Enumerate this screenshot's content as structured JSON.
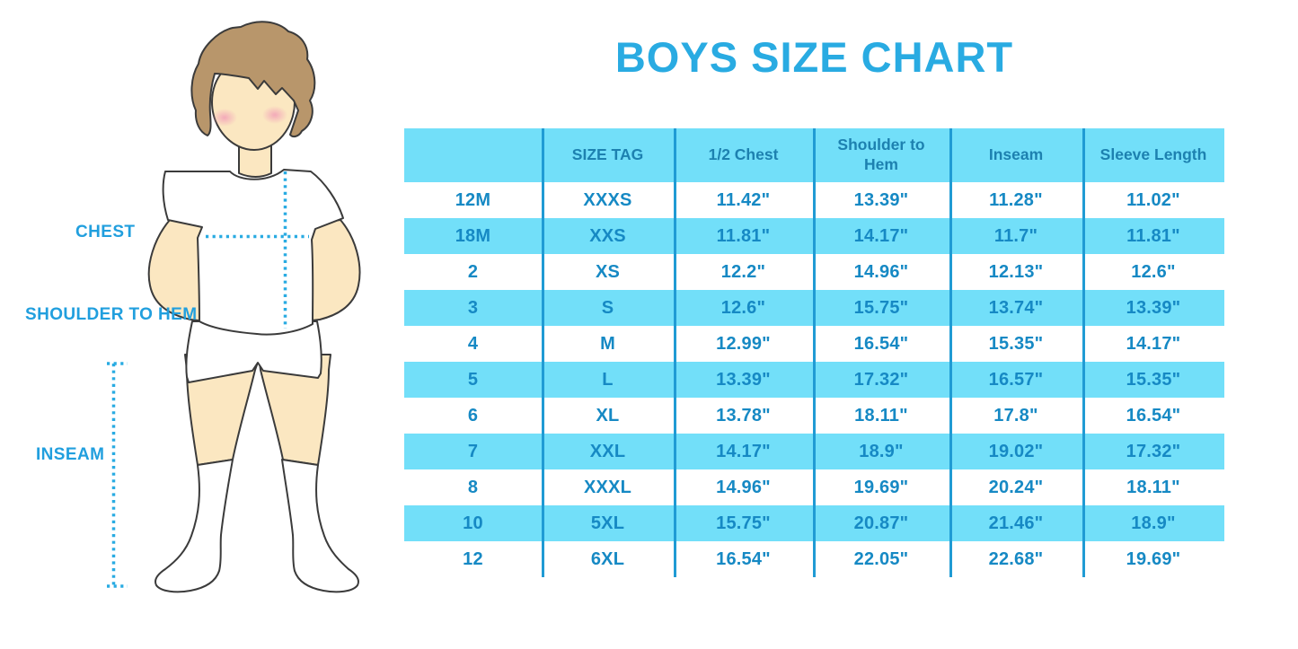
{
  "title": "BOYS SIZE CHART",
  "figure_labels": {
    "chest": "CHEST",
    "shoulder_to_hem": "SHOULDER TO HEM",
    "inseam": "INSEAM"
  },
  "table": {
    "headers": [
      "",
      "SIZE TAG",
      "1/2 Chest",
      "Shoulder to\nHem",
      "Inseam",
      "Sleeve Length"
    ],
    "rows": [
      [
        "12M",
        "XXXS",
        "11.42\"",
        "13.39\"",
        "11.28\"",
        "11.02\""
      ],
      [
        "18M",
        "XXS",
        "11.81\"",
        "14.17\"",
        "11.7\"",
        "11.81\""
      ],
      [
        "2",
        "XS",
        "12.2\"",
        "14.96\"",
        "12.13\"",
        "12.6\""
      ],
      [
        "3",
        "S",
        "12.6\"",
        "15.75\"",
        "13.74\"",
        "13.39\""
      ],
      [
        "4",
        "M",
        "12.99\"",
        "16.54\"",
        "15.35\"",
        "14.17\""
      ],
      [
        "5",
        "L",
        "13.39\"",
        "17.32\"",
        "16.57\"",
        "15.35\""
      ],
      [
        "6",
        "XL",
        "13.78\"",
        "18.11\"",
        "17.8\"",
        "16.54\""
      ],
      [
        "7",
        "XXL",
        "14.17\"",
        "18.9\"",
        "19.02\"",
        "17.32\""
      ],
      [
        "8",
        "XXXL",
        "14.96\"",
        "19.69\"",
        "20.24\"",
        "18.11\""
      ],
      [
        "10",
        "5XL",
        "15.75\"",
        "20.87\"",
        "21.46\"",
        "18.9\""
      ],
      [
        "12",
        "6XL",
        "16.54\"",
        "22.05\"",
        "22.68\"",
        "19.69\""
      ]
    ]
  },
  "colors": {
    "title_blue": "#29ABE2",
    "label_blue": "#219FDE",
    "header_text": "#1D81B0",
    "cell_text": "#1689C4",
    "row_cyan": "#72DFF9",
    "divider_blue": "#209BD4",
    "dot_blue": "#29ABE2",
    "skin": "#FBE7C1",
    "hair": "#B8966B",
    "blush": "#F2A3B8",
    "outline": "#3B3B3B"
  }
}
